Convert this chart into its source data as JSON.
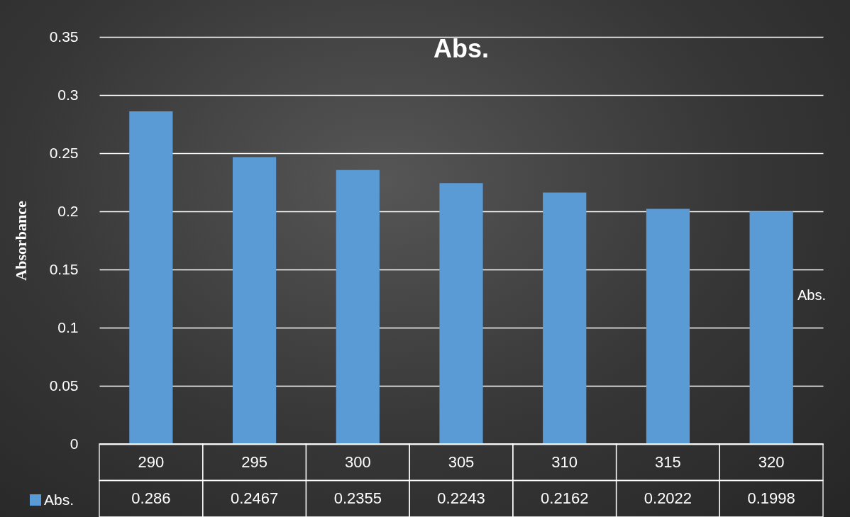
{
  "chart_data": {
    "type": "bar",
    "title": "Abs.",
    "ylabel": "Absorbance",
    "categories": [
      "290",
      "295",
      "300",
      "305",
      "310",
      "315",
      "320"
    ],
    "series": [
      {
        "name": "Abs.",
        "color": "#5b9bd5",
        "values": [
          0.286,
          0.2467,
          0.2355,
          0.2243,
          0.2162,
          0.2022,
          0.1998
        ]
      }
    ],
    "ylim": [
      0,
      0.35
    ],
    "yticks": [
      0,
      0.05,
      0.1,
      0.15,
      0.2,
      0.25,
      0.3,
      0.35
    ],
    "grid": "y",
    "legend": "right",
    "data_labels": true
  }
}
